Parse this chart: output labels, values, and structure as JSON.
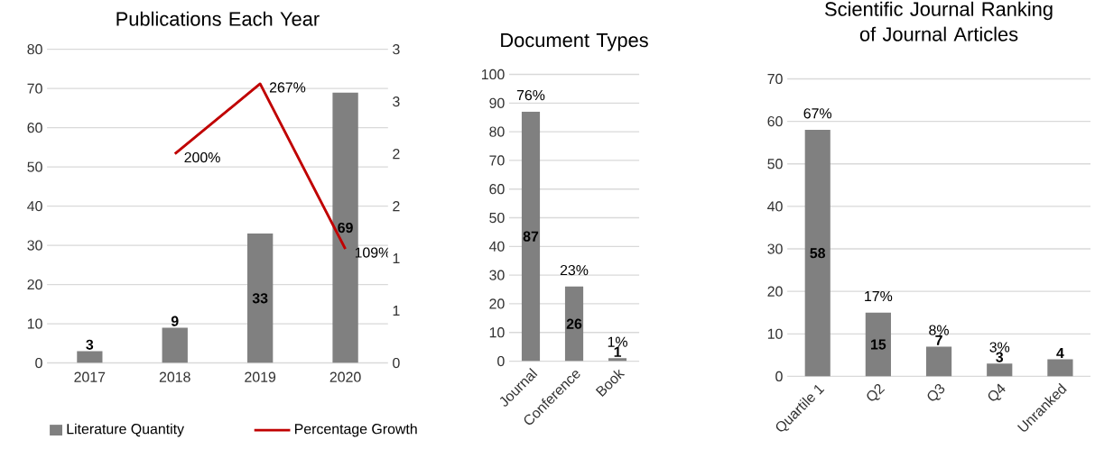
{
  "chart_data": [
    {
      "type": "bar",
      "title": "Publications Each Year",
      "categories": [
        "2017",
        "2018",
        "2019",
        "2020"
      ],
      "series": [
        {
          "name": "Literature Quantity",
          "type": "bar",
          "color": "#808080",
          "values": [
            3,
            9,
            33,
            69
          ],
          "value_labels": [
            "3",
            "9",
            "33",
            "69"
          ]
        },
        {
          "name": "Percentage Growth",
          "type": "line",
          "axis": "y2",
          "color": "#c00000",
          "values": [
            null,
            2.0,
            2.67,
            1.09
          ],
          "value_labels": [
            null,
            "200%",
            "267%",
            "109%"
          ]
        }
      ],
      "ylim": [
        0,
        80
      ],
      "yticks": [
        0,
        10,
        20,
        30,
        40,
        50,
        60,
        70,
        80
      ],
      "y2lim": [
        0,
        3
      ],
      "y2ticks": [
        0,
        {
          "value": 0.5,
          "label": "1"
        },
        1,
        {
          "value": 1.5,
          "label": "2"
        },
        2,
        {
          "value": 2.5,
          "label": "3"
        },
        3
      ],
      "grid": "y",
      "legend": "bottom"
    },
    {
      "type": "bar",
      "title": "Document Types",
      "categories": [
        "Journal",
        "Conference",
        "Book"
      ],
      "color": "#808080",
      "values": [
        87,
        26,
        1
      ],
      "data_labels": true,
      "annotations": [
        {
          "text": "76%",
          "x": "Journal",
          "y": 87
        },
        {
          "text": "23%",
          "x": "Conference",
          "y": 26
        },
        {
          "text": "1%",
          "x": "Book",
          "y": 1
        }
      ],
      "ylim": [
        0,
        100
      ],
      "yticks": [
        0,
        10,
        20,
        30,
        40,
        50,
        60,
        70,
        80,
        90,
        100
      ],
      "grid": "y"
    },
    {
      "type": "bar",
      "title": "Scientific Journal Ranking of Journal Articles",
      "categories": [
        "Quartile 1",
        "Q2",
        "Q3",
        "Q4",
        "Unranked"
      ],
      "color": "#808080",
      "values": [
        58,
        15,
        7,
        3,
        4
      ],
      "data_labels": true,
      "annotations": [
        {
          "text": "67%",
          "x": "Quartile 1",
          "y": 58
        },
        {
          "text": "17%",
          "x": "Q2",
          "y": 15
        },
        {
          "text": "8%",
          "x": "Q3",
          "y": 7
        },
        {
          "text": "3%",
          "x": "Q4",
          "y": 3
        }
      ],
      "ylim": [
        0,
        70
      ],
      "yticks": [
        0,
        10,
        20,
        30,
        40,
        50,
        60,
        70
      ],
      "grid": "y"
    }
  ]
}
